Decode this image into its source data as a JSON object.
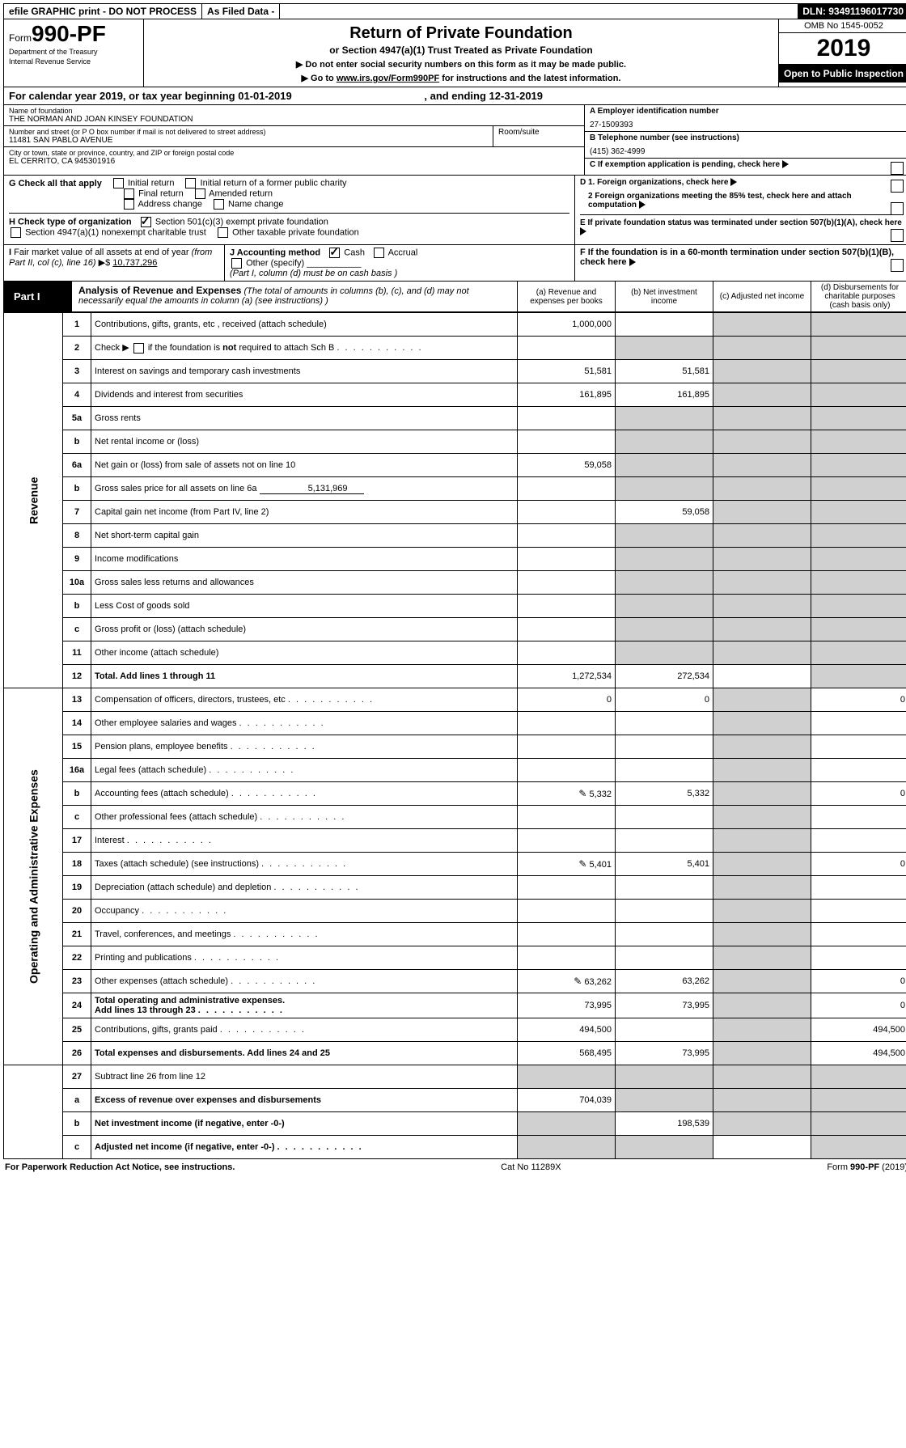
{
  "top": {
    "efile": "efile GRAPHIC print - DO NOT PROCESS",
    "filed": "As Filed Data -",
    "dln_label": "DLN: ",
    "dln": "93491196017730"
  },
  "header": {
    "form_prefix": "Form",
    "form_num": "990-PF",
    "dept1": "Department of the Treasury",
    "dept2": "Internal Revenue Service",
    "title": "Return of Private Foundation",
    "subtitle": "or Section 4947(a)(1) Trust Treated as Private Foundation",
    "note1": "▶ Do not enter social security numbers on this form as it may be made public.",
    "note2": "▶ Go to www.irs.gov/Form990PF for instructions and the latest information.",
    "omb": "OMB No 1545-0052",
    "year": "2019",
    "public": "Open to Public Inspection"
  },
  "cal": {
    "line": "For calendar year 2019, or tax year beginning 01-01-2019",
    "end": ", and ending 12-31-2019"
  },
  "id": {
    "name_label": "Name of foundation",
    "name": "THE NORMAN AND JOAN KINSEY FOUNDATION",
    "street_label": "Number and street (or P O  box number if mail is not delivered to street address)",
    "room_label": "Room/suite",
    "street": "11481 SAN PABLO AVENUE",
    "city_label": "City or town, state or province, country, and ZIP or foreign postal code",
    "city": "EL CERRITO, CA  945301916",
    "A_label": "A Employer identification number",
    "A": "27-1509393",
    "B_label": "B Telephone number (see instructions)",
    "B": "(415) 362-4999",
    "C": "C If exemption application is pending, check here",
    "D1": "D 1. Foreign organizations, check here",
    "D2": "2 Foreign organizations meeting the 85% test, check here and attach computation",
    "E": "E  If private foundation status was terminated under section 507(b)(1)(A), check here",
    "F": "F  If the foundation is in a 60-month termination under section 507(b)(1)(B), check here"
  },
  "G": {
    "label": "G Check all that apply",
    "opts": [
      "Initial return",
      "Initial return of a former public charity",
      "Final return",
      "Amended return",
      "Address change",
      "Name change"
    ]
  },
  "H": {
    "label": "H Check type of organization",
    "o1": "Section 501(c)(3) exempt private foundation",
    "o2": "Section 4947(a)(1) nonexempt charitable trust",
    "o3": "Other taxable private foundation"
  },
  "I": {
    "label": "I Fair market value of all assets at end of year (from Part II, col  (c), line 16) ▶$",
    "value": "10,737,296"
  },
  "J": {
    "label": "J Accounting method",
    "o1": "Cash",
    "o2": "Accrual",
    "o3": "Other (specify)",
    "note": "(Part I, column (d) must be on cash basis )"
  },
  "part1": {
    "label": "Part I",
    "title": "Analysis of Revenue and Expenses",
    "note": " (The total of amounts in columns (b), (c), and (d) may not necessarily equal the amounts in column (a) (see instructions) )",
    "col_a": "(a)   Revenue and expenses per books",
    "col_b": "(b)  Net investment income",
    "col_c": "(c)  Adjusted net income",
    "col_d": "(d)  Disbursements for charitable purposes (cash basis only)"
  },
  "side": {
    "rev": "Revenue",
    "exp": "Operating and Administrative Expenses"
  },
  "rows": [
    {
      "n": "1",
      "d": "Contributions, gifts, grants, etc , received (attach schedule)",
      "a": "1,000,000",
      "b": "",
      "c": "",
      "dd": ""
    },
    {
      "n": "2",
      "d": "Check ▶ ☐ if the foundation is not required to attach Sch  B",
      "extra": true
    },
    {
      "n": "3",
      "d": "Interest on savings and temporary cash investments",
      "a": "51,581",
      "b": "51,581"
    },
    {
      "n": "4",
      "d": "Dividends and interest from securities",
      "a": "161,895",
      "b": "161,895"
    },
    {
      "n": "5a",
      "d": "Gross rents"
    },
    {
      "n": "b",
      "d": "Net rental income or (loss)",
      "ul": true
    },
    {
      "n": "6a",
      "d": "Net gain or (loss) from sale of assets not on line 10",
      "a": "59,058"
    },
    {
      "n": "b",
      "d": "Gross sales price for all assets on line 6a",
      "inline": "5,131,969"
    },
    {
      "n": "7",
      "d": "Capital gain net income (from Part IV, line 2)",
      "b": "59,058"
    },
    {
      "n": "8",
      "d": "Net short-term capital gain"
    },
    {
      "n": "9",
      "d": "Income modifications"
    },
    {
      "n": "10a",
      "d": "Gross sales less returns and allowances",
      "ul": true
    },
    {
      "n": "b",
      "d": "Less  Cost of goods sold",
      "ul": true
    },
    {
      "n": "c",
      "d": "Gross profit or (loss) (attach schedule)"
    },
    {
      "n": "11",
      "d": "Other income (attach schedule)"
    },
    {
      "n": "12",
      "d": "Total. Add lines 1 through 11",
      "bold": true,
      "a": "1,272,534",
      "b": "272,534"
    }
  ],
  "exp_rows": [
    {
      "n": "13",
      "d": "Compensation of officers, directors, trustees, etc",
      "a": "0",
      "b": "0",
      "dd": "0"
    },
    {
      "n": "14",
      "d": "Other employee salaries and wages"
    },
    {
      "n": "15",
      "d": "Pension plans, employee benefits"
    },
    {
      "n": "16a",
      "d": "Legal fees (attach schedule)"
    },
    {
      "n": "b",
      "d": "Accounting fees (attach schedule)",
      "icon": true,
      "a": "5,332",
      "b": "5,332",
      "dd": "0"
    },
    {
      "n": "c",
      "d": "Other professional fees (attach schedule)"
    },
    {
      "n": "17",
      "d": "Interest"
    },
    {
      "n": "18",
      "d": "Taxes (attach schedule) (see instructions)",
      "icon": true,
      "a": "5,401",
      "b": "5,401",
      "dd": "0"
    },
    {
      "n": "19",
      "d": "Depreciation (attach schedule) and depletion"
    },
    {
      "n": "20",
      "d": "Occupancy"
    },
    {
      "n": "21",
      "d": "Travel, conferences, and meetings"
    },
    {
      "n": "22",
      "d": "Printing and publications"
    },
    {
      "n": "23",
      "d": "Other expenses (attach schedule)",
      "icon": true,
      "a": "63,262",
      "b": "63,262",
      "dd": "0"
    },
    {
      "n": "24",
      "d": "Total operating and administrative expenses. Add lines 13 through 23",
      "bold": true,
      "a": "73,995",
      "b": "73,995",
      "dd": "0"
    },
    {
      "n": "25",
      "d": "Contributions, gifts, grants paid",
      "a": "494,500",
      "dd": "494,500"
    },
    {
      "n": "26",
      "d": "Total expenses and disbursements. Add lines 24 and 25",
      "bold": true,
      "a": "568,495",
      "b": "73,995",
      "dd": "494,500"
    }
  ],
  "last_rows": [
    {
      "n": "27",
      "d": "Subtract line 26 from line 12"
    },
    {
      "n": "a",
      "d": "Excess of revenue over expenses and disbursements",
      "bold": true,
      "a": "704,039"
    },
    {
      "n": "b",
      "d": "Net investment income (if negative, enter -0-)",
      "bold": true,
      "b": "198,539"
    },
    {
      "n": "c",
      "d": "Adjusted net income (if negative, enter -0-)",
      "bold": true
    }
  ],
  "footer": {
    "left": "For Paperwork Reduction Act Notice, see instructions.",
    "mid": "Cat  No  11289X",
    "right": "Form 990-PF (2019)"
  }
}
